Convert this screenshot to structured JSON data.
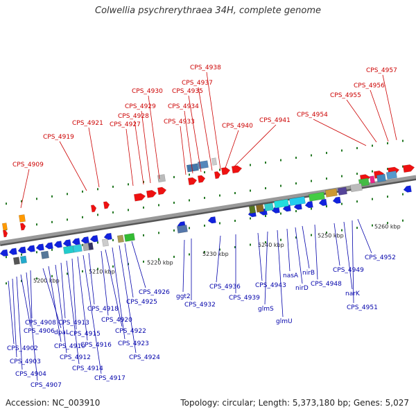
{
  "title": "Colwellia psychrerythraea 34H, complete genome",
  "footer": {
    "accession": "Accession: NC_003910",
    "summary": "Topology: circular; Length: 5,373,180 bp; Genes: 5,027"
  },
  "colors": {
    "forward_gene": "#ee1111",
    "reverse_gene": "#1122dd",
    "label_top": "#cc0000",
    "label_bottom": "#0000aa",
    "backbone": "#999999",
    "tick": "#227722"
  },
  "axis_ticks": [
    "5200 kbp",
    "5210 kbp",
    "5220 kbp",
    "5230 kbp",
    "5240 kbp",
    "5250 kbp",
    "5260 kbp"
  ],
  "top_labels": [
    "CPS_4909",
    "CPS_4919",
    "CPS_4921",
    "CPS_4927",
    "CPS_4928",
    "CPS_4929",
    "CPS_4930",
    "CPS_4933",
    "CPS_4934",
    "CPS_4935",
    "CPS_4937",
    "CPS_4938",
    "CPS_4940",
    "CPS_4941",
    "CPS_4954",
    "CPS_4955",
    "CPS_4956",
    "CPS_4957"
  ],
  "bottom_labels": [
    "CPS_4902",
    "CPS_4903",
    "CPS_4904",
    "CPS_4906",
    "CPS_4907",
    "CPS_4908",
    "dpaL",
    "CPS_4910",
    "CPS_4912",
    "CPS_4913",
    "CPS_4914",
    "CPS_4915",
    "CPS_4916",
    "CPS_4917",
    "CPS_4918",
    "CPS_4920",
    "CPS_4922",
    "CPS_4923",
    "CPS_4924",
    "CPS_4925",
    "CPS_4926",
    "ggt2",
    "CPS_4932",
    "CPS_4936",
    "CPS_4939",
    "CPS_4943",
    "glmS",
    "glmU",
    "nasA",
    "nirD",
    "nirB",
    "CPS_4948",
    "CPS_4949",
    "narK",
    "CPS_4951",
    "CPS_4952"
  ]
}
